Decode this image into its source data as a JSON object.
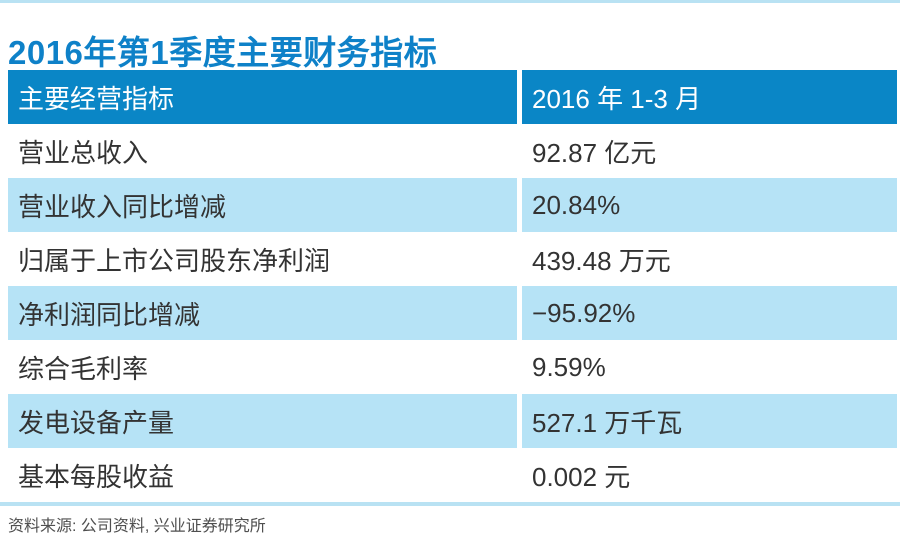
{
  "page": {
    "title": "2016年第1季度主要财务指标",
    "source_note": "资料来源: 公司资料, 兴业证券研究所"
  },
  "table": {
    "header": {
      "label": "主要经营指标",
      "value": "2016 年 1-3 月"
    },
    "rows": [
      {
        "label": "营业总收入",
        "value": "92.87 亿元"
      },
      {
        "label": "营业收入同比增减",
        "value": "20.84%"
      },
      {
        "label": "归属于上市公司股东净利润",
        "value": "439.48 万元"
      },
      {
        "label": "净利润同比增减",
        "value": "−95.92%"
      },
      {
        "label": "综合毛利率",
        "value": "9.59%"
      },
      {
        "label": "发电设备产量",
        "value": "527.1 万千瓦"
      },
      {
        "label": "基本每股收益",
        "value": "0.002 元"
      }
    ]
  },
  "chart_data": {
    "type": "table",
    "title": "2016年第1季度主要财务指标",
    "columns": [
      "主要经营指标",
      "2016 年 1-3 月"
    ],
    "rows": [
      [
        "营业总收入",
        "92.87 亿元"
      ],
      [
        "营业收入同比增减",
        "20.84%"
      ],
      [
        "归属于上市公司股东净利润",
        "439.48 万元"
      ],
      [
        "净利润同比增减",
        "−95.92%"
      ],
      [
        "综合毛利率",
        "9.59%"
      ],
      [
        "发电设备产量",
        "527.1 万千瓦"
      ],
      [
        "基本每股收益",
        "0.002 元"
      ]
    ],
    "source": "资料来源: 公司资料, 兴业证券研究所",
    "layout_hints": {
      "striped_rows": [
        2,
        4,
        6
      ],
      "header_style": "solid-blue"
    }
  },
  "colors": {
    "title_text": "#0e81c8",
    "header_bg": "#0a86c6",
    "header_text": "#ffffff",
    "stripe_bg": "#b6e3f6",
    "body_text": "#333333",
    "rule_line": "#b9e2f3",
    "source_text": "#4f4f4f"
  }
}
